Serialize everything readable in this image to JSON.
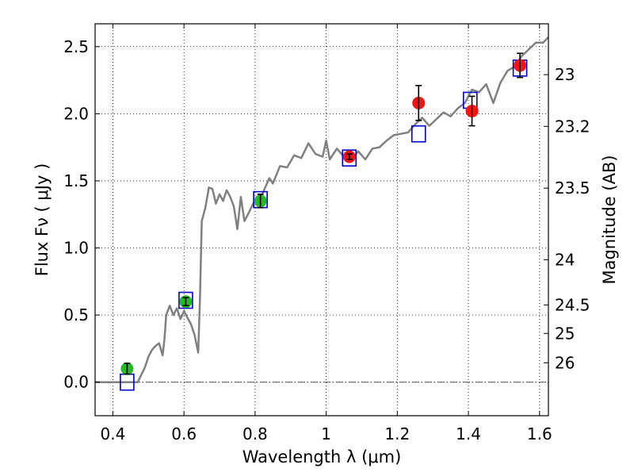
{
  "chart_data": {
    "type": "scatter",
    "title": "",
    "xlabel": "Wavelength  λ (μm)",
    "ylabel": "Flux  Fν  ( μJy )",
    "y2label": "Magnitude (AB)",
    "xlim": [
      0.35,
      1.625
    ],
    "ylim": [
      -0.25,
      2.67
    ],
    "grid": true,
    "legend": "none",
    "x_ticks": [
      {
        "value": 0.4,
        "label": "0.4"
      },
      {
        "value": 0.6,
        "label": "0.6"
      },
      {
        "value": 0.8,
        "label": "0.8"
      },
      {
        "value": 1.0,
        "label": "1"
      },
      {
        "value": 1.2,
        "label": "1.2"
      },
      {
        "value": 1.4,
        "label": "1.4"
      },
      {
        "value": 1.6,
        "label": "1.6"
      }
    ],
    "y_ticks": [
      {
        "value": 0.0,
        "label": "0.0"
      },
      {
        "value": 0.5,
        "label": "0.5"
      },
      {
        "value": 1.0,
        "label": "1.0"
      },
      {
        "value": 1.5,
        "label": "1.5"
      },
      {
        "value": 2.0,
        "label": "2.0"
      },
      {
        "value": 2.5,
        "label": "2.5"
      }
    ],
    "y2_ticks": [
      {
        "value": 23.0,
        "label": "23"
      },
      {
        "value": 23.2,
        "label": "23.2"
      },
      {
        "value": 23.5,
        "label": "23.5"
      },
      {
        "value": 24.0,
        "label": "24"
      },
      {
        "value": 24.5,
        "label": "24.5"
      },
      {
        "value": 25.0,
        "label": "25"
      },
      {
        "value": 26.0,
        "label": "26"
      }
    ],
    "series": [
      {
        "kind": "model_spectrum",
        "color": "#808080",
        "x": [
          0.35,
          0.45,
          0.47,
          0.49,
          0.5,
          0.51,
          0.52,
          0.53,
          0.54,
          0.545,
          0.55,
          0.56,
          0.57,
          0.58,
          0.59,
          0.6,
          0.61,
          0.62,
          0.63,
          0.64,
          0.645,
          0.65,
          0.66,
          0.67,
          0.68,
          0.69,
          0.7,
          0.71,
          0.72,
          0.73,
          0.74,
          0.75,
          0.76,
          0.77,
          0.78,
          0.8,
          0.82,
          0.84,
          0.85,
          0.87,
          0.89,
          0.91,
          0.93,
          0.95,
          0.97,
          0.99,
          1.0,
          1.01,
          1.03,
          1.05,
          1.07,
          1.09,
          1.11,
          1.13,
          1.15,
          1.17,
          1.19,
          1.21,
          1.23,
          1.25,
          1.27,
          1.29,
          1.31,
          1.33,
          1.35,
          1.37,
          1.39,
          1.41,
          1.43,
          1.45,
          1.47,
          1.49,
          1.51,
          1.53,
          1.55,
          1.57,
          1.59,
          1.61,
          1.625
        ],
        "y": [
          0.0,
          0.0,
          0.0,
          0.11,
          0.19,
          0.24,
          0.27,
          0.29,
          0.2,
          0.32,
          0.5,
          0.57,
          0.5,
          0.55,
          0.47,
          0.53,
          0.48,
          0.43,
          0.35,
          0.22,
          0.62,
          1.2,
          1.3,
          1.45,
          1.44,
          1.33,
          1.4,
          1.35,
          1.43,
          1.38,
          1.31,
          1.14,
          1.38,
          1.2,
          1.25,
          1.36,
          1.4,
          1.52,
          1.48,
          1.61,
          1.6,
          1.69,
          1.67,
          1.78,
          1.7,
          1.68,
          1.8,
          1.66,
          1.74,
          1.68,
          1.65,
          1.72,
          1.66,
          1.74,
          1.75,
          1.8,
          1.84,
          1.85,
          1.86,
          1.92,
          1.97,
          1.91,
          1.96,
          2.01,
          1.98,
          2.04,
          2.08,
          2.18,
          2.16,
          2.22,
          2.08,
          2.23,
          2.32,
          2.35,
          2.43,
          2.48,
          2.53,
          2.53,
          2.57
        ]
      },
      {
        "kind": "model_bandpass",
        "marker": "open-square",
        "color": "#0000cc",
        "x": [
          0.44,
          0.605,
          0.815,
          1.065,
          1.26,
          1.405,
          1.545
        ],
        "y": [
          0.0,
          0.61,
          1.36,
          1.67,
          1.85,
          2.1,
          2.34
        ]
      },
      {
        "kind": "observed_optical",
        "marker": "filled-circle",
        "color": "#22bb22",
        "x": [
          0.44,
          0.605,
          0.815
        ],
        "y": [
          0.1,
          0.6,
          1.35
        ],
        "yerr": [
          0.04,
          0.03,
          0.05
        ]
      },
      {
        "kind": "observed_nir",
        "marker": "filled-circle",
        "color": "#ff1111",
        "x": [
          1.065,
          1.26,
          1.41,
          1.545
        ],
        "y": [
          1.68,
          2.08,
          2.02,
          2.36
        ],
        "yerr": [
          0.02,
          0.13,
          0.11,
          0.09
        ]
      }
    ]
  }
}
